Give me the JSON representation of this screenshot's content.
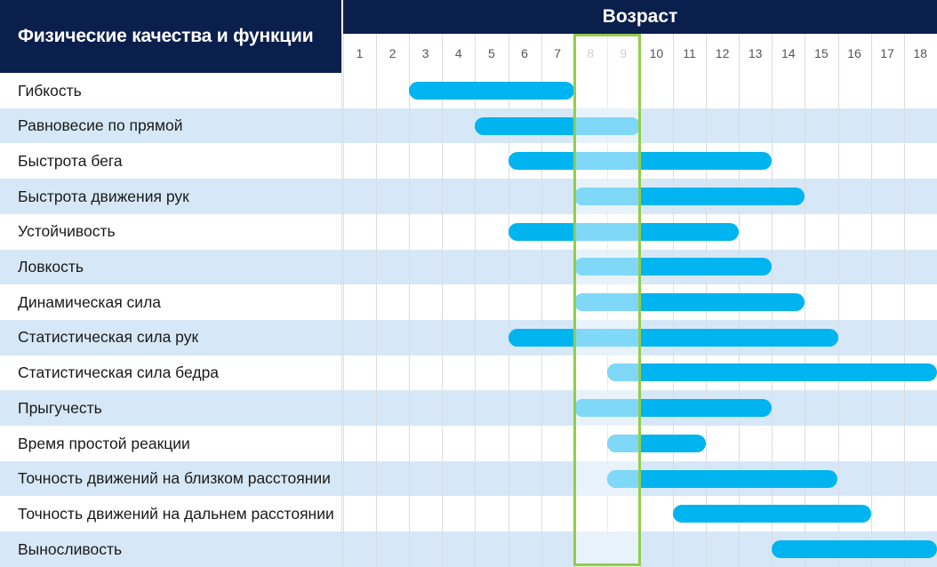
{
  "chart_data": {
    "type": "gantt",
    "title": "",
    "row_header": "Физические качества и функции",
    "axis_title": "Возраст",
    "ages": [
      "1",
      "2",
      "3",
      "4",
      "5",
      "6",
      "7",
      "8",
      "9",
      "10",
      "11",
      "12",
      "13",
      "14",
      "15",
      "16",
      "17",
      "18"
    ],
    "highlight_ages": [
      8,
      9
    ],
    "rows": [
      {
        "label": "Гибкость",
        "start": 3,
        "end": 7
      },
      {
        "label": "Равновесие по прямой",
        "start": 5,
        "end": 9
      },
      {
        "label": "Быстрота бега",
        "start": 6,
        "end": 13
      },
      {
        "label": "Быстрота движения рук",
        "start": 8,
        "end": 14
      },
      {
        "label": "Устойчивость",
        "start": 6,
        "end": 12
      },
      {
        "label": "Ловкость",
        "start": 8,
        "end": 13
      },
      {
        "label": "Динамическая сила",
        "start": 8,
        "end": 14
      },
      {
        "label": "Статистическая сила рук",
        "start": 6,
        "end": 15
      },
      {
        "label": "Статистическая сила бедра",
        "start": 9,
        "end": 18
      },
      {
        "label": "Прыгучесть",
        "start": 8,
        "end": 13
      },
      {
        "label": "Время простой реакции",
        "start": 9,
        "end": 11
      },
      {
        "label": "Точность движений на близком расстоянии",
        "start": 9,
        "end": 15
      },
      {
        "label": "Точность движений на дальнем расстоянии",
        "start": 11,
        "end": 16
      },
      {
        "label": "Выносливость",
        "start": 14,
        "end": 18
      }
    ]
  },
  "colors": {
    "header_bg": "#0b1f4d",
    "bar": "#00b4ef",
    "bar_highlight": "#7fd8f7",
    "highlight_border": "#8fcf4a",
    "row_alt": "#d6e8f7",
    "row": "#ffffff",
    "grid": "#d9dde3"
  }
}
